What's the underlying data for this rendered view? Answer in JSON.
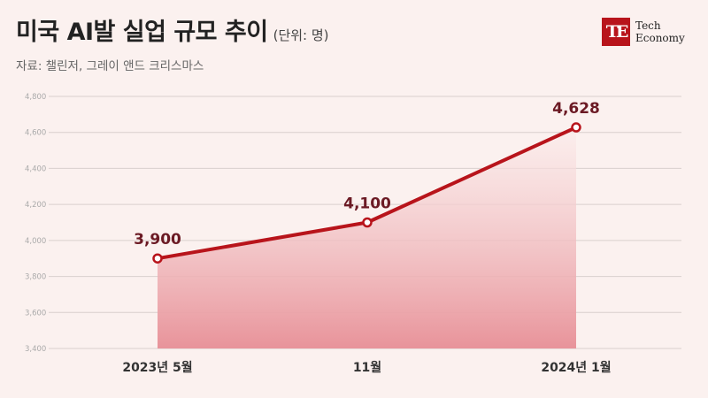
{
  "header": {
    "title": "미국 AI발 실업 규모 추이",
    "unit": "(단위: 명)",
    "source": "자료: 챌린저, 그레이 앤드 크리스마스"
  },
  "logo": {
    "mark": "TE",
    "line1": "Tech",
    "line2": "Economy"
  },
  "chart_data": {
    "type": "area",
    "title": "미국 AI발 실업 규모 추이",
    "unit": "(단위: 명)",
    "categories": [
      "2023년 5월",
      "11월",
      "2024년 1월"
    ],
    "values": [
      3900,
      4100,
      4628
    ],
    "value_labels": [
      "3,900",
      "4,100",
      "4,628"
    ],
    "ylim": [
      3400,
      4800
    ],
    "yticks": [
      3400,
      3600,
      3800,
      4000,
      4200,
      4400,
      4600,
      4800
    ],
    "ytick_labels": [
      "3,400",
      "3,600",
      "3,800",
      "4,000",
      "4,200",
      "4,400",
      "4,600",
      "4,800"
    ],
    "grid": true,
    "colors": {
      "line": "#b8141b",
      "fill_top": "#fbeceb",
      "fill_bottom": "#e8939a",
      "grid": "#d9d0ce",
      "label": "#6b1a24"
    }
  }
}
